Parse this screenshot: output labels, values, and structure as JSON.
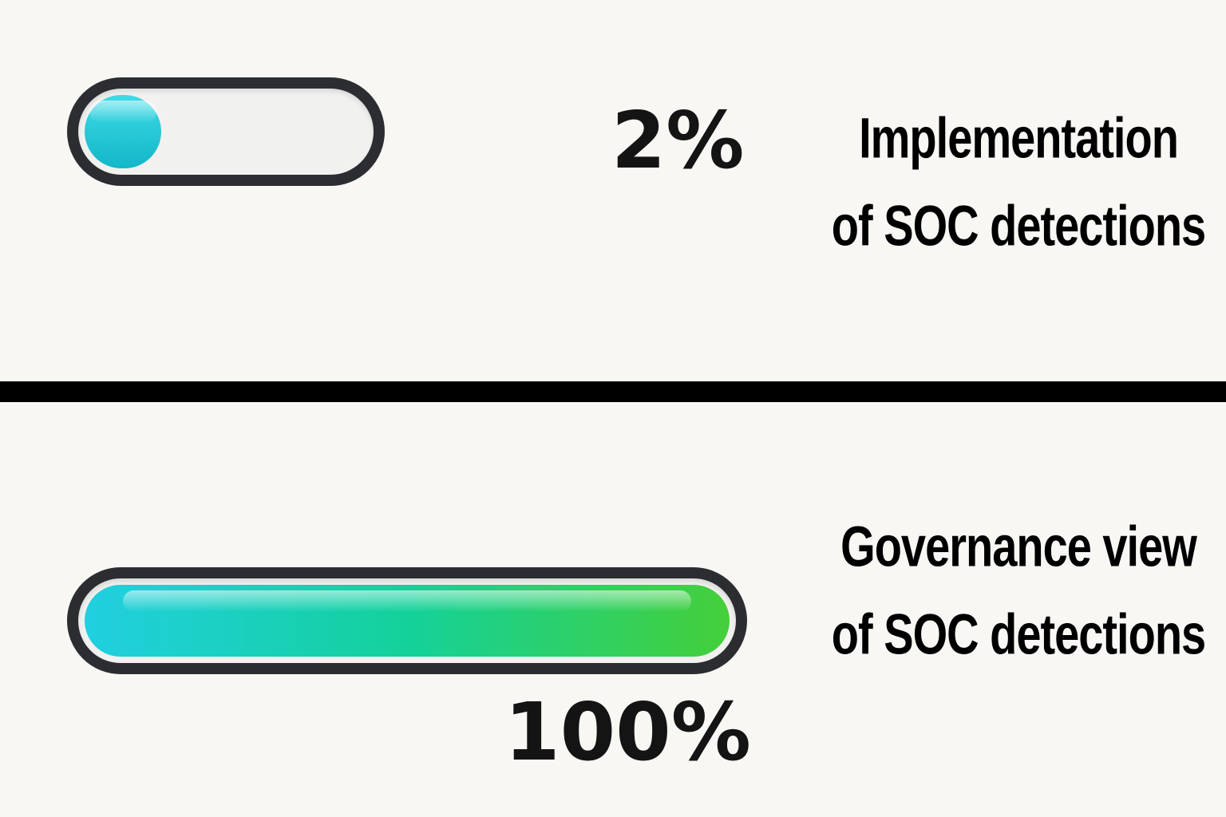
{
  "panels": [
    {
      "progress_percent": 2,
      "percent_text": "2%",
      "label_lines": [
        "Implementation",
        "of SOC detections"
      ],
      "fill_colors": [
        "#3fdbe6",
        "#12b7c9"
      ]
    },
    {
      "progress_percent": 100,
      "percent_text": "100%",
      "label_lines": [
        "Governance view",
        "of SOC detections"
      ],
      "fill_colors": [
        "#21cfe0",
        "#14d19a",
        "#45cf3a"
      ]
    }
  ],
  "colors": {
    "background": "#f8f7f4",
    "track_border": "#2b2d31",
    "divider": "#000000",
    "text": "#141414"
  }
}
